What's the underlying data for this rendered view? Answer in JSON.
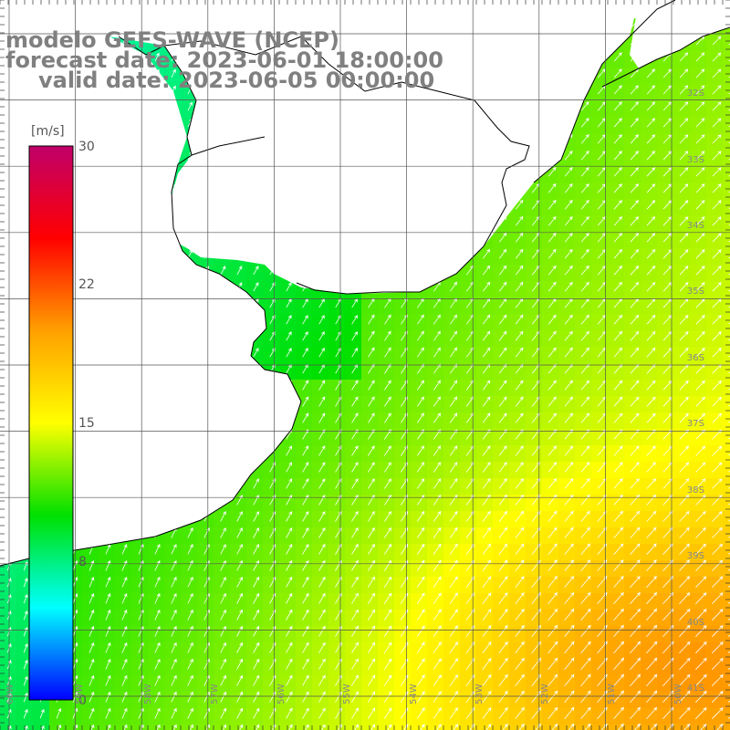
{
  "title": {
    "model": "modelo GEFS-WAVE (NCEP)",
    "forecast": "forecast date: 2023-06-01 18:00:00",
    "valid": "valid date: 2023-06-05 00:00:00"
  },
  "colorbar": {
    "unit": "[m/s]",
    "ticks": [
      "30",
      "22",
      "15",
      "8",
      "0"
    ],
    "colors": [
      "#c0006a",
      "#ff0000",
      "#ffa000",
      "#ffff00",
      "#00e000",
      "#00ffff",
      "#0000ff"
    ]
  },
  "axes": {
    "lat_labels": [
      "32S",
      "33S",
      "34S",
      "35S",
      "36S",
      "37S",
      "38S",
      "39S",
      "40S",
      "41S"
    ],
    "lon_labels": [
      "60W",
      "59W",
      "58W",
      "57W",
      "56W",
      "55W",
      "54W",
      "53W",
      "52W",
      "51W",
      "50W"
    ]
  },
  "field": {
    "variable": "wind speed",
    "units": "m/s",
    "range": [
      0,
      30
    ],
    "arrow_color": "#ffffff",
    "land_color": "#ffffff",
    "coast_color": "#000000"
  }
}
